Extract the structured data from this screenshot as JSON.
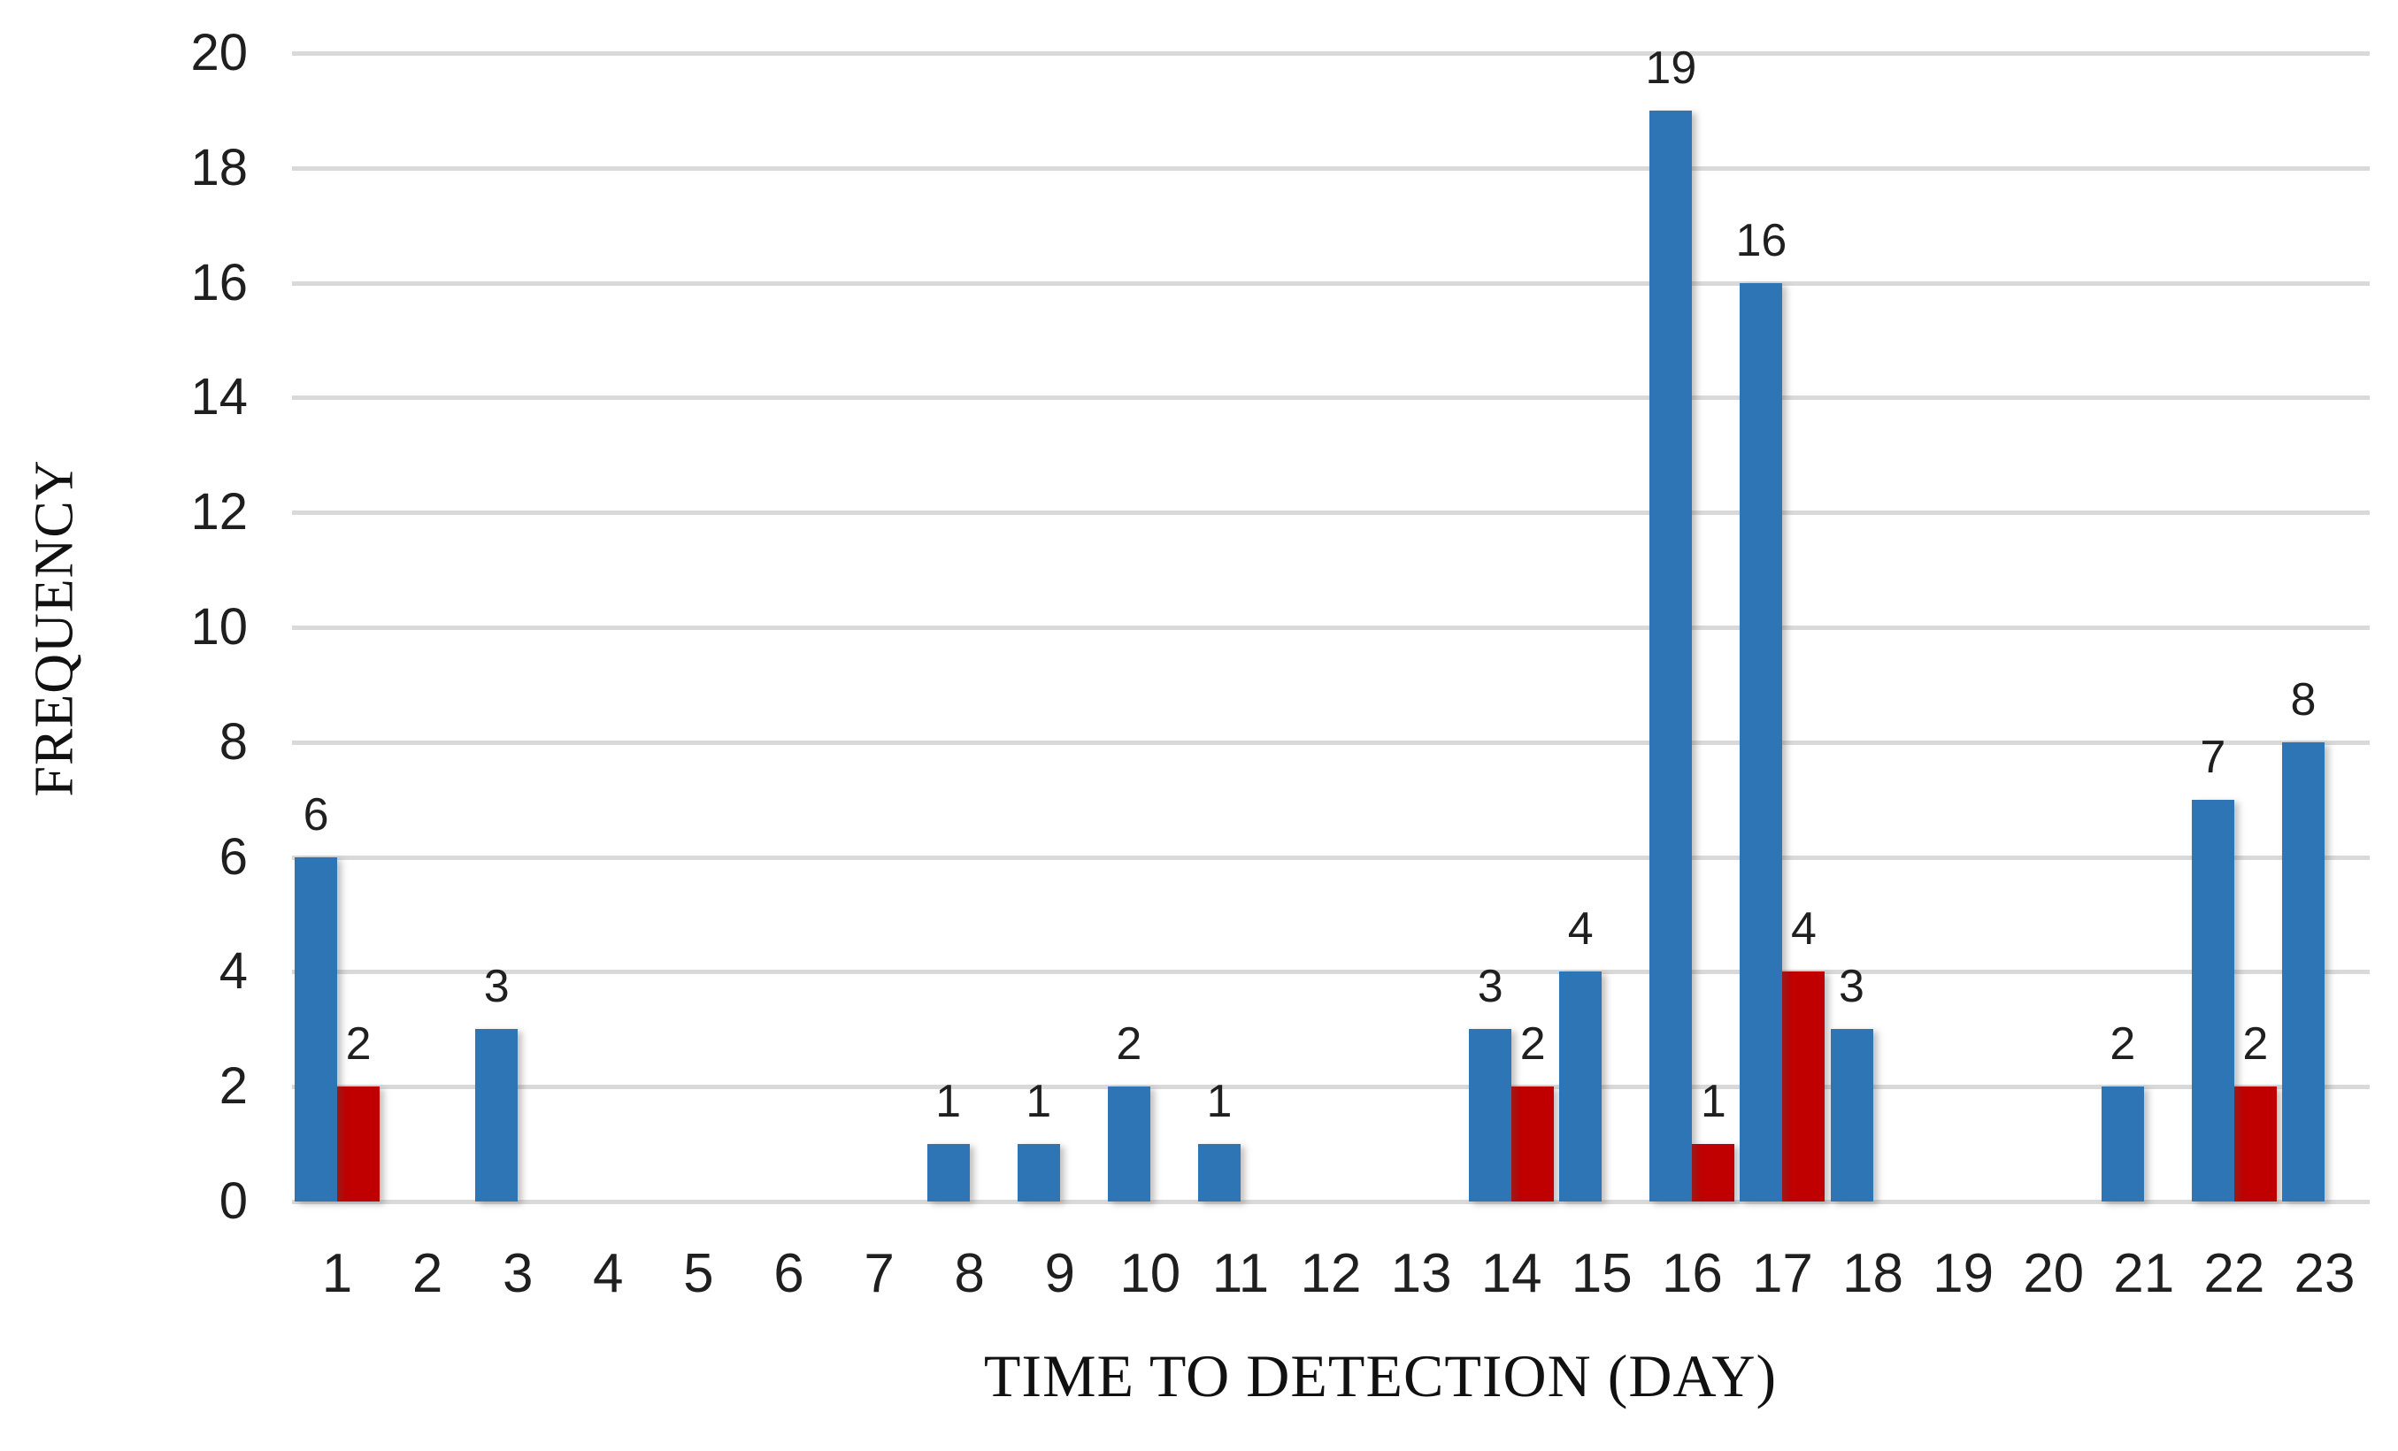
{
  "chart_data": {
    "type": "bar",
    "title": "",
    "xlabel": "TIME TO DETECTION (DAY)",
    "ylabel": "FREQUENCY",
    "categories": [
      1,
      2,
      3,
      4,
      5,
      6,
      7,
      8,
      9,
      10,
      11,
      12,
      13,
      14,
      15,
      16,
      17,
      18,
      19,
      20,
      21,
      22,
      23
    ],
    "series": [
      {
        "name": "blue-series",
        "color": "#2E75B6",
        "values": [
          6,
          0,
          3,
          0,
          0,
          0,
          0,
          1,
          1,
          2,
          1,
          0,
          0,
          3,
          4,
          19,
          16,
          3,
          0,
          0,
          2,
          7,
          8
        ]
      },
      {
        "name": "red-series",
        "color": "#C00000",
        "values": [
          2,
          0,
          0,
          0,
          0,
          0,
          0,
          0,
          0,
          0,
          0,
          0,
          0,
          2,
          0,
          1,
          4,
          0,
          0,
          0,
          0,
          2,
          0
        ]
      }
    ],
    "ylim": [
      0,
      20
    ],
    "yticks": [
      0,
      2,
      4,
      6,
      8,
      10,
      12,
      14,
      16,
      18,
      20
    ],
    "grid": true,
    "legend_position": "none",
    "data_labels": true,
    "gridline_color": "#D9D9D9",
    "label_color": "#1F1F1F"
  },
  "layout_note": "clustered column chart, no legend, white background"
}
